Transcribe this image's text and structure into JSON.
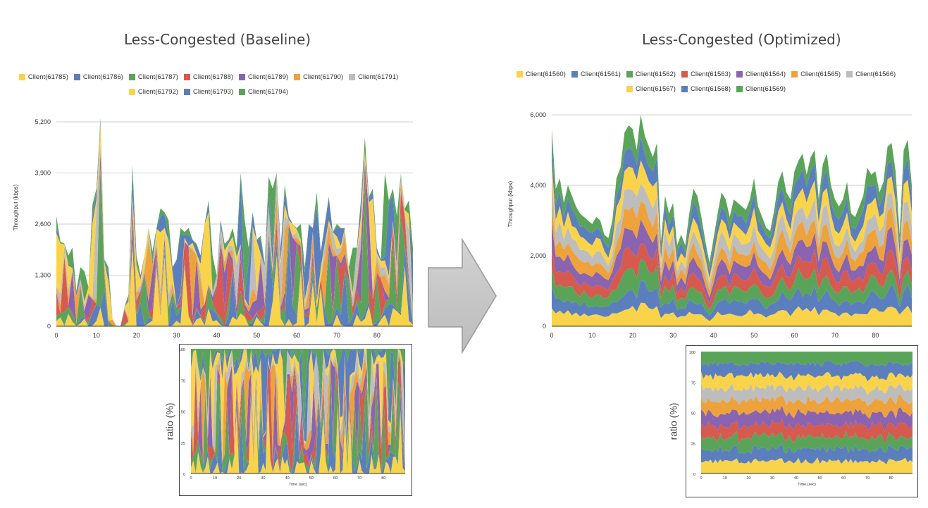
{
  "palette": [
    "#f9d44a",
    "#5b7fbe",
    "#5aa45a",
    "#d65a4e",
    "#8a63b1",
    "#eea23c",
    "#bdbdbd",
    "#f9d44a",
    "#5b7fbe",
    "#5aa45a"
  ],
  "arrow_icon": "right-arrow-icon",
  "chart_data": [
    {
      "id": "baseline-main",
      "type": "area",
      "title": "Less-Congested (Baseline)",
      "ylabel": "Throughput (kbps)",
      "xlabel": "",
      "stacked": true,
      "grid": true,
      "xlim": [
        0,
        89
      ],
      "ylim": [
        0,
        5400
      ],
      "xticks": [
        0,
        10,
        20,
        30,
        40,
        50,
        60,
        70,
        80
      ],
      "yticks": [
        0,
        1300,
        2600,
        3900,
        5200
      ],
      "ytick_labels": [
        "0",
        "1,300",
        "2,600",
        "3,900",
        "5,200"
      ],
      "legend": [
        "Client(61785)",
        "Client(61786)",
        "Client(61787)",
        "Client(61788)",
        "Client(61789)",
        "Client(61790)",
        "Client(61791)",
        "Client(61792)",
        "Client(61793)",
        "Client(61794)"
      ],
      "x_step": 1,
      "totals": [
        2800,
        2150,
        2100,
        1800,
        2000,
        900,
        1500,
        1400,
        1000,
        3100,
        3500,
        5300,
        1700,
        1500,
        200,
        0,
        0,
        500,
        800,
        4100,
        1800,
        1300,
        1800,
        2500,
        1900,
        2500,
        3000,
        2900,
        2700,
        1500,
        1700,
        2500,
        2400,
        2500,
        2200,
        2100,
        1800,
        2600,
        3200,
        1800,
        1300,
        2700,
        2100,
        2200,
        2500,
        2000,
        3900,
        2700,
        2000,
        2900,
        2200,
        2300,
        1600,
        3800,
        3500,
        3900,
        2000,
        3600,
        2800,
        2600,
        2500,
        2600,
        1500,
        2600,
        2500,
        3400,
        1900,
        2600,
        3300,
        2400,
        2600,
        2500,
        2500,
        1500,
        2000,
        2000,
        3200,
        4800,
        3300,
        3500,
        2000,
        1700,
        3900,
        3200,
        3500,
        2800,
        3900,
        3000,
        3200,
        2000
      ],
      "mode": "volatile"
    },
    {
      "id": "optimized-main",
      "type": "area",
      "title": "Less-Congested (Optimized)",
      "ylabel": "Throughput (kbps)",
      "xlabel": "",
      "stacked": true,
      "grid": true,
      "xlim": [
        0,
        89
      ],
      "ylim": [
        0,
        6200
      ],
      "xticks": [
        0,
        10,
        20,
        30,
        40,
        50,
        60,
        70,
        80
      ],
      "yticks": [
        0,
        2000,
        4000,
        6000
      ],
      "ytick_labels": [
        "0",
        "2,000",
        "4,000",
        "6,000"
      ],
      "legend": [
        "Client(61560)",
        "Client(61561)",
        "Client(61562)",
        "Client(61563)",
        "Client(61564)",
        "Client(61565)",
        "Client(61566)",
        "Client(61567)",
        "Client(61568)",
        "Client(61569)"
      ],
      "x_step": 1,
      "totals": [
        5600,
        3900,
        4200,
        3500,
        4000,
        3700,
        3400,
        3200,
        3100,
        3000,
        2900,
        3100,
        3000,
        2600,
        2500,
        3000,
        4200,
        4500,
        5500,
        5700,
        5600,
        5000,
        6000,
        5400,
        5100,
        4800,
        5200,
        2400,
        3700,
        3200,
        3500,
        2300,
        2600,
        2300,
        3200,
        3900,
        3700,
        3100,
        2400,
        1800,
        2500,
        3200,
        3800,
        3600,
        3100,
        3600,
        3500,
        3400,
        3300,
        3600,
        4200,
        3400,
        3100,
        2800,
        2700,
        3300,
        4100,
        4400,
        3800,
        3600,
        4400,
        4700,
        4900,
        4300,
        4800,
        5000,
        3600,
        4600,
        4900,
        4000,
        3600,
        3400,
        3600,
        4100,
        3200,
        3100,
        3400,
        3700,
        4500,
        4300,
        4400,
        3800,
        4100,
        5100,
        5200,
        4400,
        2600,
        5000,
        5300,
        4000
      ],
      "mode": "even"
    },
    {
      "id": "baseline-ratio",
      "type": "area",
      "title": "",
      "ylabel": "ratio (%)",
      "xlabel": "Time (sec)",
      "stacked": true,
      "normalized": true,
      "grid": false,
      "xlim": [
        0,
        89
      ],
      "ylim": [
        0,
        100
      ],
      "xticks": [
        0,
        10,
        20,
        30,
        40,
        50,
        60,
        70,
        80
      ],
      "yticks": [
        0,
        25,
        50,
        75,
        100
      ],
      "ytick_labels": [
        "0",
        "25",
        "50",
        "75",
        "100"
      ],
      "mode": "volatile"
    },
    {
      "id": "optimized-ratio",
      "type": "area",
      "title": "",
      "ylabel": "ratio (%)",
      "xlabel": "Time (sec)",
      "stacked": true,
      "normalized": true,
      "grid": false,
      "xlim": [
        0,
        89
      ],
      "ylim": [
        0,
        100
      ],
      "xticks": [
        0,
        10,
        20,
        30,
        40,
        50,
        60,
        70,
        80
      ],
      "yticks": [
        0,
        25,
        50,
        75,
        100
      ],
      "ytick_labels": [
        "0",
        "25",
        "50",
        "75",
        "100"
      ],
      "mode": "even"
    }
  ]
}
